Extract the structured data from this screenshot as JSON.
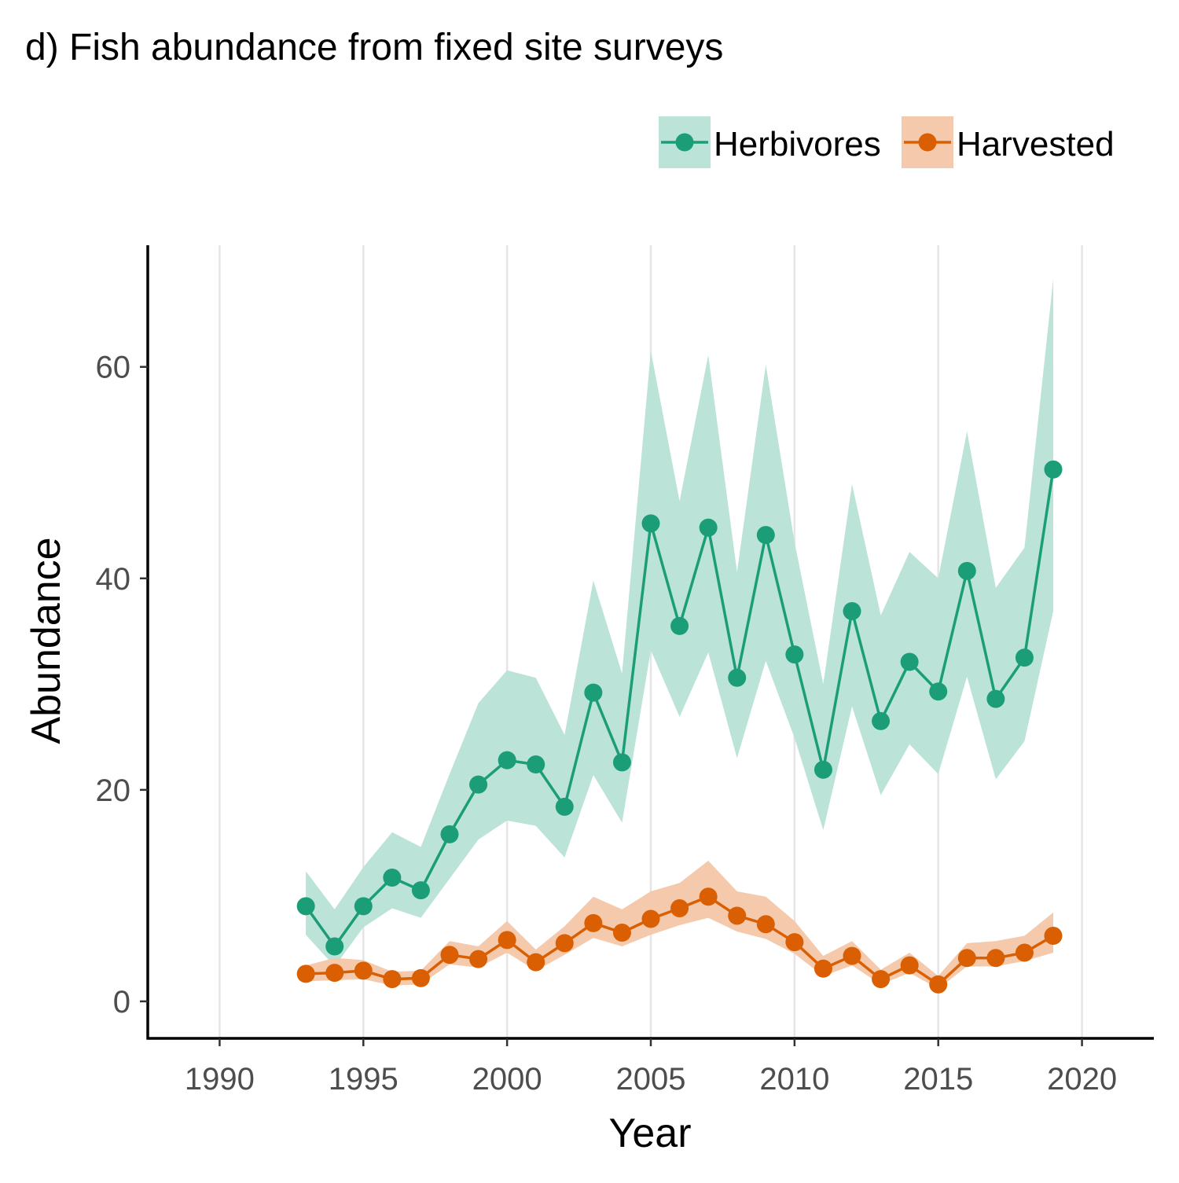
{
  "chart_data": {
    "type": "line",
    "title": "d) Fish abundance from fixed site surveys",
    "xlabel": "Year",
    "ylabel": "Abundance",
    "xlim": [
      1987.5,
      2022.5
    ],
    "ylim": [
      -3.5,
      71.5
    ],
    "x_ticks": [
      1990,
      1995,
      2000,
      2005,
      2010,
      2015,
      2020
    ],
    "y_ticks": [
      0,
      20,
      40,
      60
    ],
    "grid": "vertical-major",
    "legend_position": "top-right",
    "series": [
      {
        "name": "Herbivores",
        "color": "#1b9e77",
        "ribbon_color": "#bbe3d7",
        "x": [
          1993,
          1994,
          1995,
          1996,
          1997,
          1998,
          1999,
          2000,
          2001,
          2002,
          2003,
          2004,
          2005,
          2006,
          2007,
          2008,
          2009,
          2010,
          2011,
          2012,
          2013,
          2014,
          2015,
          2016,
          2017,
          2018,
          2019
        ],
        "values": [
          9.0,
          5.2,
          9.0,
          11.7,
          10.5,
          15.8,
          20.5,
          22.8,
          22.4,
          18.4,
          29.2,
          22.6,
          45.2,
          35.5,
          44.8,
          30.6,
          44.1,
          32.8,
          21.9,
          36.9,
          26.5,
          32.1,
          29.3,
          40.7,
          28.6,
          32.5,
          50.3
        ],
        "lower": [
          6.3,
          3.3,
          7.0,
          8.8,
          7.9,
          11.6,
          15.3,
          17.1,
          16.6,
          13.6,
          21.4,
          16.9,
          33.2,
          26.9,
          33.0,
          23.0,
          32.2,
          24.9,
          16.2,
          27.9,
          19.5,
          24.3,
          21.5,
          30.7,
          21.0,
          24.6,
          36.9
        ],
        "upper": [
          12.3,
          8.7,
          12.7,
          16.0,
          14.6,
          21.5,
          28.2,
          31.3,
          30.6,
          25.2,
          39.8,
          31.0,
          61.5,
          47.3,
          61.1,
          40.6,
          60.2,
          43.4,
          30.0,
          48.9,
          36.5,
          42.5,
          40.0,
          53.9,
          39.1,
          42.9,
          68.3
        ]
      },
      {
        "name": "Harvested",
        "color": "#d95f02",
        "ribbon_color": "#f4c9ac",
        "x": [
          1993,
          1994,
          1995,
          1996,
          1997,
          1998,
          1999,
          2000,
          2001,
          2002,
          2003,
          2004,
          2005,
          2006,
          2007,
          2008,
          2009,
          2010,
          2011,
          2012,
          2013,
          2014,
          2015,
          2016,
          2017,
          2018,
          2019
        ],
        "values": [
          2.6,
          2.7,
          2.9,
          2.1,
          2.2,
          4.4,
          4.0,
          5.8,
          3.7,
          5.5,
          7.4,
          6.5,
          7.8,
          8.8,
          9.9,
          8.1,
          7.3,
          5.6,
          3.1,
          4.3,
          2.1,
          3.4,
          1.6,
          4.1,
          4.1,
          4.6,
          6.2
        ],
        "lower": [
          1.9,
          2.0,
          2.1,
          1.5,
          1.6,
          3.5,
          3.2,
          4.6,
          2.9,
          4.4,
          6.0,
          5.2,
          6.3,
          7.2,
          7.9,
          6.6,
          5.9,
          4.5,
          2.4,
          3.4,
          1.6,
          2.7,
          1.2,
          3.3,
          3.3,
          3.8,
          4.6
        ],
        "upper": [
          3.4,
          4.1,
          3.9,
          2.8,
          2.9,
          5.7,
          5.2,
          7.6,
          4.9,
          7.1,
          9.9,
          8.7,
          10.4,
          11.2,
          13.3,
          10.4,
          9.9,
          7.6,
          4.3,
          5.7,
          3.0,
          4.6,
          2.4,
          5.5,
          5.7,
          6.2,
          8.4
        ]
      }
    ]
  }
}
